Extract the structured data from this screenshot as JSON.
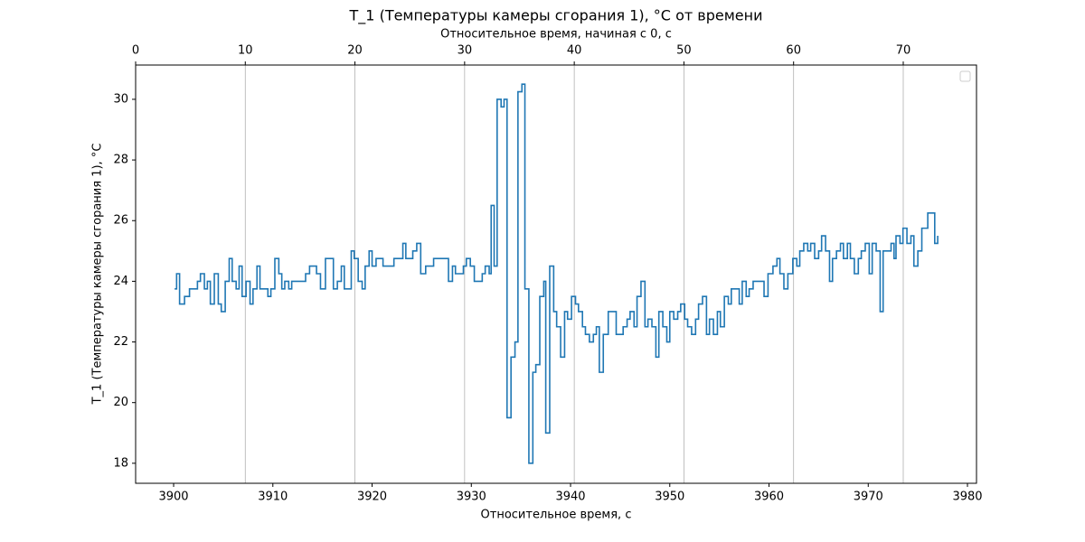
{
  "chart_data": {
    "type": "line",
    "drawstyle": "steps-post",
    "title": "T_1 (Температуры камеры сгорания 1), °C от времени",
    "xlabel": "Относительное время, с",
    "x2label": "Относительное время, начиная с 0, с",
    "ylabel": "T_1 (Температуры камеры сгорания 1), °C",
    "color": "#1f77b4",
    "xlim": [
      3896.17,
      3980.91
    ],
    "xticks": [
      3900,
      3910,
      3920,
      3930,
      3940,
      3950,
      3960,
      3970,
      3980
    ],
    "x2lim": [
      0,
      76.68
    ],
    "x2ticks": [
      0,
      10,
      20,
      30,
      40,
      50,
      60,
      70
    ],
    "ylim": [
      17.34,
      31.13
    ],
    "yticks": [
      18,
      20,
      22,
      24,
      26,
      28,
      30
    ],
    "grid": "x2",
    "legend": "upper right",
    "x": [
      3900.1,
      3900.3,
      3900.6,
      3901.1,
      3901.6,
      3902.4,
      3902.7,
      3903.1,
      3903.4,
      3903.7,
      3904.1,
      3904.5,
      3904.8,
      3905.2,
      3905.6,
      3905.9,
      3906.3,
      3906.6,
      3906.9,
      3907.3,
      3907.7,
      3908.0,
      3908.4,
      3908.7,
      3909.5,
      3909.8,
      3910.2,
      3910.6,
      3910.9,
      3911.2,
      3911.6,
      3911.9,
      3913.3,
      3913.7,
      3914.4,
      3914.8,
      3915.3,
      3916.1,
      3916.5,
      3916.9,
      3917.2,
      3917.9,
      3918.2,
      3918.6,
      3919.0,
      3919.3,
      3919.7,
      3920.0,
      3920.4,
      3921.1,
      3922.2,
      3923.1,
      3923.4,
      3924.1,
      3924.5,
      3924.9,
      3925.4,
      3926.2,
      3927.7,
      3928.1,
      3928.4,
      3929.2,
      3929.5,
      3929.9,
      3930.3,
      3931.1,
      3931.4,
      3931.8,
      3932.0,
      3932.3,
      3932.6,
      3933.0,
      3933.3,
      3933.6,
      3934.0,
      3934.4,
      3934.7,
      3935.1,
      3935.4,
      3935.8,
      3936.2,
      3936.5,
      3936.9,
      3937.3,
      3937.5,
      3937.9,
      3938.3,
      3938.6,
      3939.0,
      3939.4,
      3939.7,
      3940.1,
      3940.5,
      3940.8,
      3941.2,
      3941.5,
      3941.9,
      3942.3,
      3942.6,
      3942.9,
      3943.3,
      3943.8,
      3944.6,
      3945.3,
      3945.7,
      3946.0,
      3946.4,
      3946.7,
      3947.1,
      3947.5,
      3947.8,
      3948.2,
      3948.6,
      3948.9,
      3949.3,
      3949.7,
      3950.0,
      3950.4,
      3950.8,
      3951.1,
      3951.5,
      3951.8,
      3952.2,
      3952.6,
      3952.9,
      3953.3,
      3953.7,
      3954.0,
      3954.4,
      3954.8,
      3955.1,
      3955.5,
      3955.9,
      3956.2,
      3957.0,
      3957.3,
      3957.7,
      3958.0,
      3958.4,
      3959.5,
      3959.9,
      3960.4,
      3960.8,
      3961.1,
      3961.5,
      3961.9,
      3962.4,
      3962.8,
      3963.1,
      3963.5,
      3963.9,
      3964.2,
      3964.6,
      3965.0,
      3965.3,
      3965.7,
      3966.1,
      3966.4,
      3966.8,
      3967.2,
      3967.5,
      3967.9,
      3968.2,
      3968.6,
      3969.0,
      3969.3,
      3969.7,
      3970.1,
      3970.4,
      3970.8,
      3971.2,
      3971.5,
      3972.3,
      3972.6,
      3972.8,
      3973.2,
      3973.5,
      3973.9,
      3974.3,
      3974.6,
      3975.0,
      3975.4,
      3976.0,
      3976.7,
      3977.0
    ],
    "values": [
      23.75,
      24.25,
      23.25,
      23.5,
      23.75,
      24.0,
      24.25,
      23.75,
      24.0,
      23.25,
      24.25,
      23.25,
      23.0,
      24.0,
      24.75,
      24.0,
      23.75,
      24.5,
      23.5,
      24.0,
      23.25,
      23.75,
      24.5,
      23.75,
      23.5,
      23.75,
      24.75,
      24.25,
      23.75,
      24.0,
      23.75,
      24.0,
      24.25,
      24.5,
      24.25,
      23.75,
      24.75,
      23.75,
      24.0,
      24.5,
      23.75,
      25.0,
      24.75,
      24.0,
      23.75,
      24.5,
      25.0,
      24.5,
      24.75,
      24.5,
      24.75,
      25.25,
      24.75,
      25.0,
      25.25,
      24.25,
      24.5,
      24.75,
      24.0,
      24.5,
      24.25,
      24.5,
      24.75,
      24.5,
      24.0,
      24.25,
      24.5,
      24.25,
      26.5,
      24.5,
      30.0,
      29.75,
      30.0,
      19.5,
      21.5,
      22.0,
      30.25,
      30.5,
      23.75,
      18.0,
      21.0,
      21.25,
      23.5,
      24.0,
      19.0,
      24.5,
      23.0,
      22.5,
      21.5,
      23.0,
      22.75,
      23.5,
      23.25,
      23.0,
      22.5,
      22.25,
      22.0,
      22.25,
      22.5,
      21.0,
      22.25,
      23.0,
      22.25,
      22.5,
      22.75,
      23.0,
      22.5,
      23.5,
      24.0,
      22.5,
      22.75,
      22.5,
      21.5,
      23.0,
      22.5,
      22.0,
      23.0,
      22.75,
      23.0,
      23.25,
      22.75,
      22.5,
      22.25,
      22.75,
      23.25,
      23.5,
      22.25,
      22.75,
      22.25,
      23.0,
      22.5,
      23.5,
      23.25,
      23.75,
      23.25,
      24.0,
      23.5,
      23.75,
      24.0,
      23.5,
      24.25,
      24.5,
      24.75,
      24.25,
      23.75,
      24.25,
      24.75,
      24.5,
      25.0,
      25.25,
      25.0,
      25.25,
      24.75,
      25.0,
      25.5,
      25.0,
      24.0,
      24.75,
      25.0,
      25.25,
      24.75,
      25.25,
      24.75,
      24.25,
      24.75,
      25.0,
      25.25,
      24.25,
      25.25,
      25.0,
      23.0,
      25.0,
      25.25,
      24.75,
      25.5,
      25.25,
      25.75,
      25.25,
      25.5,
      24.5,
      25.0,
      25.75,
      26.25,
      25.25,
      25.5
    ]
  }
}
